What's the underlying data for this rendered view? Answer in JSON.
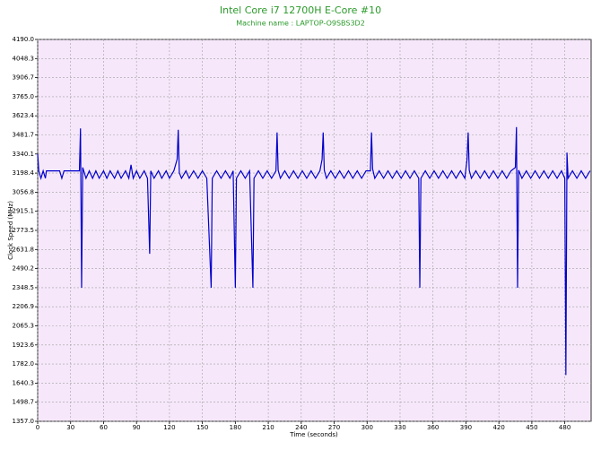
{
  "chart_data": {
    "type": "line",
    "title": "Intel Core i7 12700H E-Core #10",
    "subtitle": "Machine name : LAPTOP-O9SBS3D2",
    "xlabel": "Time (seconds)",
    "ylabel": "Clock Speed (MHz)",
    "color": "#0000cc",
    "grid": true,
    "xlim": [
      0,
      504
    ],
    "ylim": [
      1357,
      4190
    ],
    "xticks": [
      0,
      30,
      60,
      90,
      120,
      150,
      180,
      210,
      240,
      270,
      300,
      330,
      360,
      390,
      420,
      450,
      480
    ],
    "yticks": [
      {
        "value": 1357,
        "label": "1357.0"
      },
      1498.7,
      1640.3,
      {
        "value": 1782,
        "label": "1782.0"
      },
      1923.6,
      2065.3,
      2206.9,
      2348.5,
      2490.2,
      2631.8,
      2773.5,
      2915.1,
      3056.8,
      3198.4,
      3340.1,
      3481.7,
      3623.4,
      {
        "value": 3765,
        "label": "3765.0"
      },
      3906.7,
      4048.3,
      {
        "value": 4190,
        "label": "4190.0"
      }
    ],
    "x": [
      0,
      1,
      3,
      5,
      7,
      8,
      20,
      22,
      24,
      38,
      39,
      40,
      41,
      44,
      47,
      50,
      53,
      56,
      60,
      63,
      66,
      70,
      73,
      76,
      80,
      83,
      85,
      87,
      90,
      93,
      97,
      100,
      102,
      103,
      106,
      110,
      113,
      117,
      120,
      124,
      127,
      128,
      129,
      131,
      135,
      138,
      142,
      146,
      150,
      154,
      158,
      159,
      163,
      167,
      171,
      175,
      178,
      180,
      181,
      185,
      189,
      193,
      196,
      197,
      201,
      205,
      209,
      213,
      217,
      218,
      219,
      221,
      225,
      229,
      233,
      237,
      241,
      245,
      249,
      253,
      257,
      259,
      260,
      261,
      263,
      267,
      271,
      275,
      279,
      283,
      287,
      291,
      295,
      299,
      303,
      304,
      305,
      307,
      311,
      315,
      319,
      323,
      327,
      331,
      335,
      339,
      343,
      347,
      348,
      349,
      353,
      357,
      361,
      365,
      369,
      373,
      377,
      381,
      385,
      389,
      391,
      392,
      393,
      395,
      399,
      403,
      407,
      411,
      415,
      419,
      423,
      427,
      431,
      435,
      436,
      437,
      438,
      441,
      445,
      449,
      453,
      457,
      461,
      465,
      469,
      473,
      477,
      480,
      481,
      482,
      483,
      487,
      491,
      495,
      499,
      503
    ],
    "values": [
      3340,
      3215,
      3160,
      3215,
      3160,
      3215,
      3215,
      3160,
      3215,
      3215,
      3530,
      2348,
      3240,
      3160,
      3215,
      3160,
      3215,
      3160,
      3215,
      3160,
      3215,
      3160,
      3215,
      3160,
      3215,
      3160,
      3260,
      3160,
      3215,
      3160,
      3215,
      3160,
      2600,
      3215,
      3160,
      3215,
      3160,
      3215,
      3160,
      3215,
      3300,
      3520,
      3200,
      3160,
      3215,
      3160,
      3215,
      3160,
      3215,
      3160,
      2348,
      3160,
      3215,
      3160,
      3215,
      3160,
      3215,
      2348,
      3160,
      3215,
      3160,
      3215,
      2348,
      3160,
      3215,
      3160,
      3215,
      3160,
      3215,
      3500,
      3220,
      3160,
      3215,
      3160,
      3215,
      3160,
      3215,
      3160,
      3215,
      3160,
      3215,
      3300,
      3500,
      3220,
      3160,
      3215,
      3160,
      3215,
      3160,
      3215,
      3160,
      3215,
      3160,
      3215,
      3215,
      3500,
      3230,
      3160,
      3215,
      3160,
      3215,
      3160,
      3215,
      3160,
      3215,
      3160,
      3215,
      3160,
      2348,
      3160,
      3215,
      3160,
      3215,
      3160,
      3215,
      3160,
      3215,
      3160,
      3215,
      3160,
      3300,
      3500,
      3220,
      3160,
      3215,
      3160,
      3215,
      3160,
      3215,
      3160,
      3215,
      3160,
      3215,
      3240,
      3540,
      2348,
      3220,
      3160,
      3215,
      3160,
      3215,
      3160,
      3215,
      3160,
      3215,
      3160,
      3215,
      3160,
      1700,
      3350,
      3160,
      3215,
      3160,
      3215,
      3160,
      3215
    ]
  }
}
